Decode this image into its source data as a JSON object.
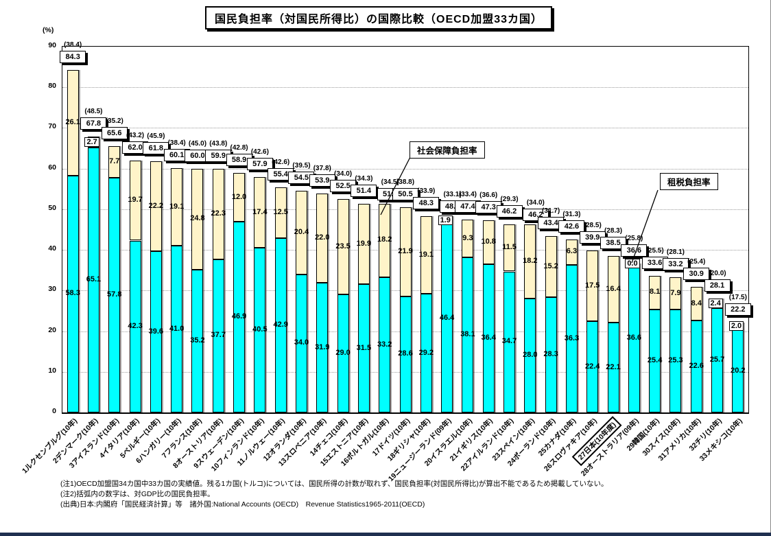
{
  "title": "国民負担率（対国民所得比）の国際比較（OECD加盟33カ国）",
  "y_axis": {
    "unit_label": "(%)",
    "ticks": [
      90,
      80,
      70,
      60,
      50,
      40,
      30,
      20,
      10,
      0
    ],
    "max": 90
  },
  "callouts": {
    "social": "社会保障負担率",
    "tax": "租税負担率"
  },
  "notes": [
    "(注1)OECD加盟国34カ国中33カ国の実績値。残る1カ国(トルコ)については、国民所得の計数が取れず、国民負担率(対国民所得比)が算出不能であるため掲載していない。",
    "(注2)括弧内の数字は、対GDP比の国民負担率。",
    "(出典)日本:内閣府「国民経済計算」等　諸外国:National Accounts (OECD)　Revenue Statistics1965-2011(OECD)"
  ],
  "colors": {
    "tax_segment": "#00FFFF",
    "social_segment": "#FFF4C9",
    "footer_bar": "#1F3050"
  },
  "chart_data": {
    "type": "bar",
    "stacked": true,
    "title": "国民負担率（対国民所得比）の国際比較（OECD加盟33カ国）",
    "ylabel": "(%)",
    "ylim": [
      0,
      90
    ],
    "grid": "horizontal-dotted",
    "series_names": {
      "tax": "租税負担率",
      "social": "社会保障負担率"
    },
    "note": "gdp = 対GDP比の国民負担率(括弧内表示), total = 国民負担率(対国民所得比), tax = 租税負担率, social = 社会保障負担率",
    "countries": [
      {
        "label": "1ルクセンブルグ(10年)",
        "gdp": 38.4,
        "total": 84.3,
        "tax": 58.3,
        "social": 26.1
      },
      {
        "label": "2デンマーク(10年)",
        "gdp": 48.5,
        "total": 67.8,
        "tax": 65.1,
        "social": 2.7
      },
      {
        "label": "3アイスランド(10年)",
        "gdp": 35.2,
        "total": 65.6,
        "tax": 57.8,
        "social": 7.7
      },
      {
        "label": "4イタリア(10年)",
        "gdp": 43.2,
        "total": 62.0,
        "tax": 42.3,
        "social": 19.7
      },
      {
        "label": "5ベルギー(10年)",
        "gdp": 45.9,
        "total": 61.8,
        "tax": 39.6,
        "social": 22.2
      },
      {
        "label": "6ハンガリー(10年)",
        "gdp": 38.4,
        "total": 60.1,
        "tax": 41.0,
        "social": 19.1
      },
      {
        "label": "7フランス(10年)",
        "gdp": 45.0,
        "total": 60.0,
        "tax": 35.2,
        "social": 24.8
      },
      {
        "label": "8オーストリア(10年)",
        "gdp": 43.8,
        "total": 59.9,
        "tax": 37.7,
        "social": 22.3
      },
      {
        "label": "9スウェーデン(10年)",
        "gdp": 42.8,
        "total": 58.9,
        "tax": 46.9,
        "social": 12.0
      },
      {
        "label": "10フィンランド(10年)",
        "gdp": 42.6,
        "total": 57.9,
        "tax": 40.5,
        "social": 17.4
      },
      {
        "label": "11ノルウェー(10年)",
        "gdp": 42.6,
        "total": 55.4,
        "tax": 42.9,
        "social": 12.5
      },
      {
        "label": "12オランダ(10年)",
        "gdp": 39.5,
        "total": 54.5,
        "tax": 34.0,
        "social": 20.4
      },
      {
        "label": "13スロベニア(10年)",
        "gdp": 37.8,
        "total": 53.9,
        "tax": 31.9,
        "social": 22.0
      },
      {
        "label": "14チェコ(10年)",
        "gdp": 34.0,
        "total": 52.5,
        "tax": 29.0,
        "social": 23.5
      },
      {
        "label": "15エストニア(10年)",
        "gdp": 34.3,
        "total": 51.4,
        "tax": 31.5,
        "social": 19.9
      },
      {
        "label": "16ポルトガル(10年)",
        "gdp": 34.5,
        "total": 51.4,
        "tax": 33.2,
        "social": 18.2
      },
      {
        "label": "17ドイツ(10年)",
        "gdp": 38.8,
        "total": 50.5,
        "tax": 28.6,
        "social": 21.9
      },
      {
        "label": "18ギリシャ(10年)",
        "gdp": 33.9,
        "total": 48.3,
        "tax": 29.2,
        "social": 19.1
      },
      {
        "label": "19ニュージーランド(09年)",
        "gdp": 33.1,
        "total": 48.3,
        "tax": 46.4,
        "social": 1.9
      },
      {
        "label": "20イスラエル(10年)",
        "gdp": 33.4,
        "total": 47.4,
        "tax": 38.1,
        "social": 9.3
      },
      {
        "label": "21イギリス(10年)",
        "gdp": 36.6,
        "total": 47.3,
        "tax": 36.4,
        "social": 10.8
      },
      {
        "label": "22アイルランド(10年)",
        "gdp": 29.3,
        "total": 46.2,
        "tax": 34.7,
        "social": 11.5
      },
      {
        "label": "23スペイン(10年)",
        "gdp": 34.0,
        "total": 46.2,
        "tax": 28.0,
        "social": 18.2
      },
      {
        "label": "24ポーランド(10年)",
        "gdp": 31.7,
        "total": 43.4,
        "tax": 28.3,
        "social": 15.2
      },
      {
        "label": "25カナダ(10年)",
        "gdp": 31.3,
        "total": 42.6,
        "tax": 36.3,
        "social": 6.3
      },
      {
        "label": "26スロヴァキア(10年)",
        "gdp": 28.5,
        "total": 39.9,
        "tax": 22.4,
        "social": 17.5
      },
      {
        "label": "27日本(10年度)",
        "gdp": 28.3,
        "total": 38.5,
        "tax": 22.1,
        "social": 16.4,
        "highlight": true
      },
      {
        "label": "28オーストラリア(09年)",
        "gdp": 25.8,
        "total": 36.6,
        "tax": 36.6,
        "social": 0.0
      },
      {
        "label": "29韓国(10年)",
        "gdp": 25.5,
        "total": 33.6,
        "tax": 25.4,
        "social": 8.1
      },
      {
        "label": "30スイス(10年)",
        "gdp": 28.1,
        "total": 33.2,
        "tax": 25.3,
        "social": 7.9
      },
      {
        "label": "31アメリカ(10年)",
        "gdp": 25.4,
        "total": 30.9,
        "tax": 22.6,
        "social": 8.4
      },
      {
        "label": "32チリ(10年)",
        "gdp": 20.0,
        "total": 28.1,
        "tax": 25.7,
        "social": 2.4
      },
      {
        "label": "33メキシコ(10年)",
        "gdp": 17.5,
        "total": 22.2,
        "tax": 20.2,
        "social": 2.0
      }
    ]
  }
}
